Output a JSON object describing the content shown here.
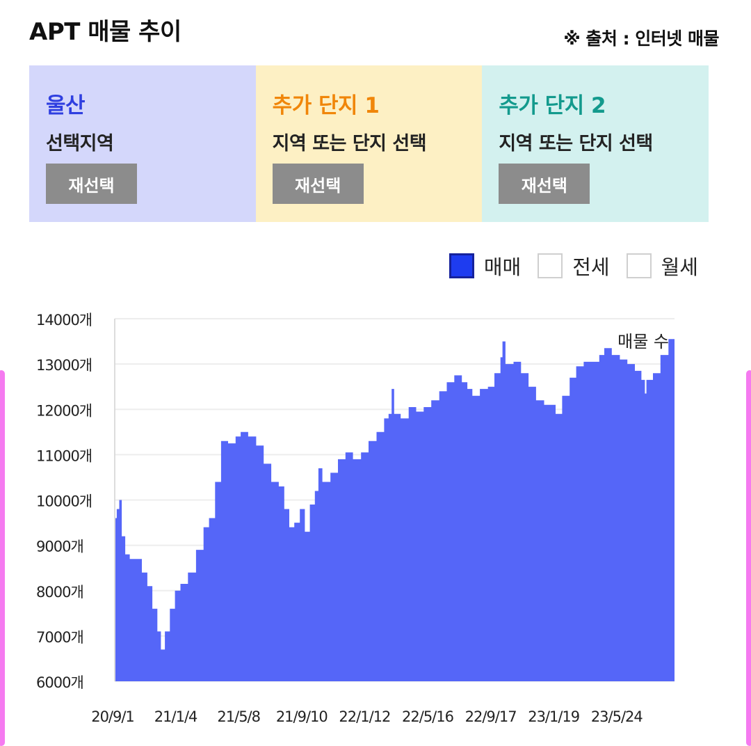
{
  "header": {
    "title": "APT 매물 추이",
    "source": "※ 출처 : 인터넷 매물"
  },
  "cards": [
    {
      "name": "울산",
      "sub": "선택지역",
      "button": "재선택",
      "bg": "#d4d7fb",
      "color": "#2f3fe0"
    },
    {
      "name": "추가 단지 1",
      "sub": "지역 또는 단지 선택",
      "button": "재선택",
      "bg": "#fdf0c4",
      "color": "#f0860a"
    },
    {
      "name": "추가 단지 2",
      "sub": "지역 또는 단지 선택",
      "button": "재선택",
      "bg": "#d3f1ef",
      "color": "#139a8d"
    }
  ],
  "legend": [
    {
      "label": "매매",
      "checked": true
    },
    {
      "label": "전세",
      "checked": false
    },
    {
      "label": "월세",
      "checked": false
    }
  ],
  "chart_data": {
    "type": "area",
    "series": [
      {
        "name": "매매",
        "color": "#5566f8"
      }
    ],
    "annotation": "매물 수",
    "ylim": [
      6000,
      14000
    ],
    "yticks": [
      "6000개",
      "7000개",
      "8000개",
      "9000개",
      "10000개",
      "11000개",
      "12000개",
      "13000개",
      "14000개"
    ],
    "xticks": [
      "20/9/1",
      "21/1/4",
      "21/5/8",
      "21/9/10",
      "22/1/12",
      "22/5/16",
      "22/9/17",
      "23/1/19",
      "23/5/24"
    ],
    "x_range": [
      "2020-09-01",
      "2023-09-22"
    ],
    "points": [
      [
        "2020-09-01",
        9600
      ],
      [
        "2020-09-05",
        9800
      ],
      [
        "2020-09-10",
        10000
      ],
      [
        "2020-09-15",
        9200
      ],
      [
        "2020-09-22",
        8800
      ],
      [
        "2020-10-01",
        8700
      ],
      [
        "2020-10-12",
        8700
      ],
      [
        "2020-10-25",
        8400
      ],
      [
        "2020-11-05",
        8100
      ],
      [
        "2020-11-15",
        7600
      ],
      [
        "2020-11-25",
        7100
      ],
      [
        "2020-12-02",
        6700
      ],
      [
        "2020-12-10",
        7100
      ],
      [
        "2020-12-20",
        7600
      ],
      [
        "2020-12-30",
        8000
      ],
      [
        "2021-01-10",
        8150
      ],
      [
        "2021-01-25",
        8400
      ],
      [
        "2021-02-10",
        8900
      ],
      [
        "2021-02-25",
        9400
      ],
      [
        "2021-03-08",
        9600
      ],
      [
        "2021-03-20",
        10400
      ],
      [
        "2021-04-01",
        11300
      ],
      [
        "2021-04-15",
        11250
      ],
      [
        "2021-04-30",
        11400
      ],
      [
        "2021-05-10",
        11500
      ],
      [
        "2021-05-25",
        11400
      ],
      [
        "2021-06-10",
        11200
      ],
      [
        "2021-06-25",
        10800
      ],
      [
        "2021-07-10",
        10400
      ],
      [
        "2021-07-25",
        10300
      ],
      [
        "2021-08-05",
        9800
      ],
      [
        "2021-08-15",
        9400
      ],
      [
        "2021-08-25",
        9500
      ],
      [
        "2021-09-05",
        9800
      ],
      [
        "2021-09-15",
        9300
      ],
      [
        "2021-09-25",
        9900
      ],
      [
        "2021-10-05",
        10200
      ],
      [
        "2021-10-12",
        10700
      ],
      [
        "2021-10-20",
        10400
      ],
      [
        "2021-11-05",
        10600
      ],
      [
        "2021-11-20",
        10900
      ],
      [
        "2021-12-05",
        11050
      ],
      [
        "2021-12-20",
        10900
      ],
      [
        "2022-01-05",
        11050
      ],
      [
        "2022-01-20",
        11300
      ],
      [
        "2022-02-05",
        11500
      ],
      [
        "2022-02-20",
        11800
      ],
      [
        "2022-03-01",
        11900
      ],
      [
        "2022-03-07",
        12450
      ],
      [
        "2022-03-12",
        11900
      ],
      [
        "2022-03-25",
        11800
      ],
      [
        "2022-04-10",
        12050
      ],
      [
        "2022-04-25",
        11950
      ],
      [
        "2022-05-10",
        12050
      ],
      [
        "2022-05-25",
        12200
      ],
      [
        "2022-06-10",
        12400
      ],
      [
        "2022-06-25",
        12600
      ],
      [
        "2022-07-10",
        12750
      ],
      [
        "2022-07-25",
        12600
      ],
      [
        "2022-08-05",
        12450
      ],
      [
        "2022-08-15",
        12300
      ],
      [
        "2022-08-30",
        12450
      ],
      [
        "2022-09-15",
        12500
      ],
      [
        "2022-09-28",
        12800
      ],
      [
        "2022-10-10",
        13150
      ],
      [
        "2022-10-14",
        13500
      ],
      [
        "2022-10-20",
        13000
      ],
      [
        "2022-11-05",
        13050
      ],
      [
        "2022-11-20",
        12800
      ],
      [
        "2022-12-05",
        12500
      ],
      [
        "2022-12-20",
        12200
      ],
      [
        "2023-01-05",
        12100
      ],
      [
        "2023-01-20",
        12100
      ],
      [
        "2023-01-28",
        11900
      ],
      [
        "2023-02-10",
        12300
      ],
      [
        "2023-02-25",
        12700
      ],
      [
        "2023-03-10",
        12950
      ],
      [
        "2023-03-25",
        13050
      ],
      [
        "2023-04-10",
        13050
      ],
      [
        "2023-04-25",
        13200
      ],
      [
        "2023-05-05",
        13350
      ],
      [
        "2023-05-20",
        13200
      ],
      [
        "2023-06-05",
        13100
      ],
      [
        "2023-06-20",
        13000
      ],
      [
        "2023-07-05",
        12850
      ],
      [
        "2023-07-18",
        12650
      ],
      [
        "2023-07-25",
        12350
      ],
      [
        "2023-07-28",
        12650
      ],
      [
        "2023-08-10",
        12800
      ],
      [
        "2023-08-25",
        13200
      ],
      [
        "2023-09-10",
        13550
      ],
      [
        "2023-09-22",
        13650
      ]
    ]
  }
}
